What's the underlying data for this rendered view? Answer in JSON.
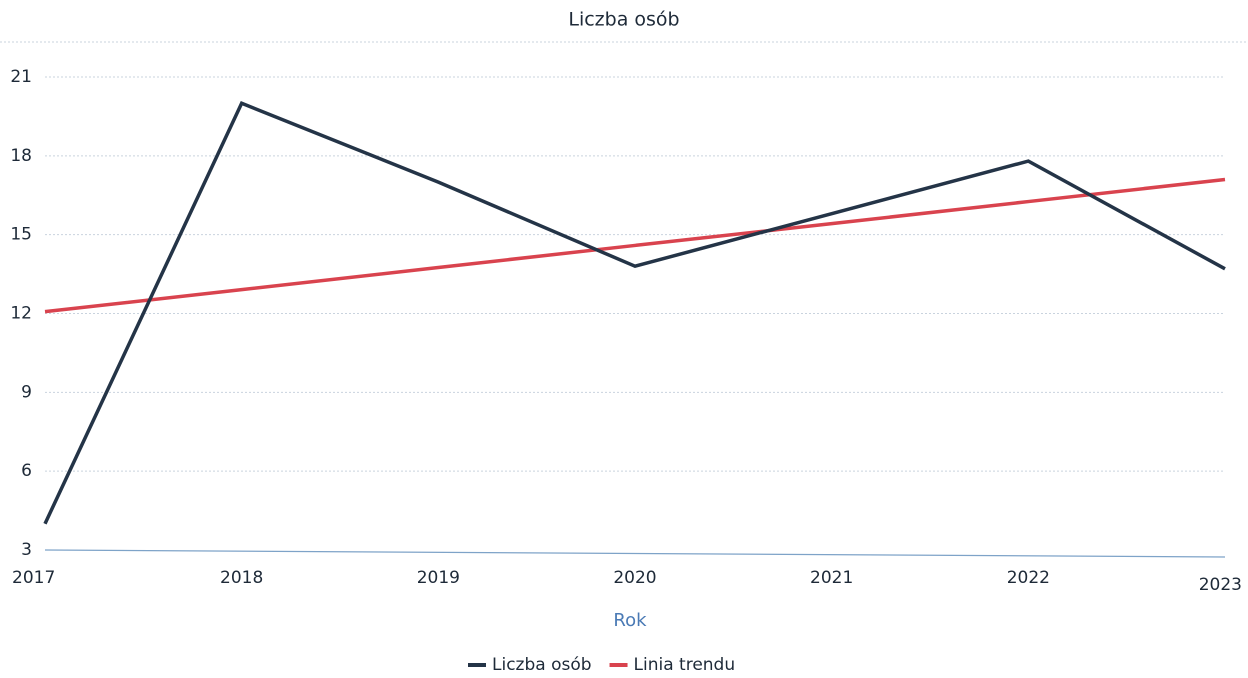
{
  "chart_data": {
    "type": "line",
    "title": "Liczba osób",
    "x_label": "Rok",
    "x": [
      2017,
      2018,
      2019,
      2020,
      2021,
      2022,
      2023
    ],
    "xlim": [
      2017,
      2023
    ],
    "xticks": [
      2017,
      2018,
      2019,
      2020,
      2021,
      2022,
      2023
    ],
    "ylim": [
      3,
      21
    ],
    "yticks": [
      3,
      6,
      9,
      12,
      15,
      18,
      21
    ],
    "grid": true,
    "legend": "bottom",
    "series": [
      {
        "name": "Liczba osób",
        "color": "#243447",
        "values": [
          4,
          20,
          17,
          13.8,
          15.8,
          17.8,
          13.7
        ]
      },
      {
        "name": "Linia trendu",
        "color": "#d9434e",
        "values": [
          12.07,
          12.91,
          13.75,
          14.59,
          15.42,
          16.26,
          17.1
        ]
      }
    ]
  }
}
